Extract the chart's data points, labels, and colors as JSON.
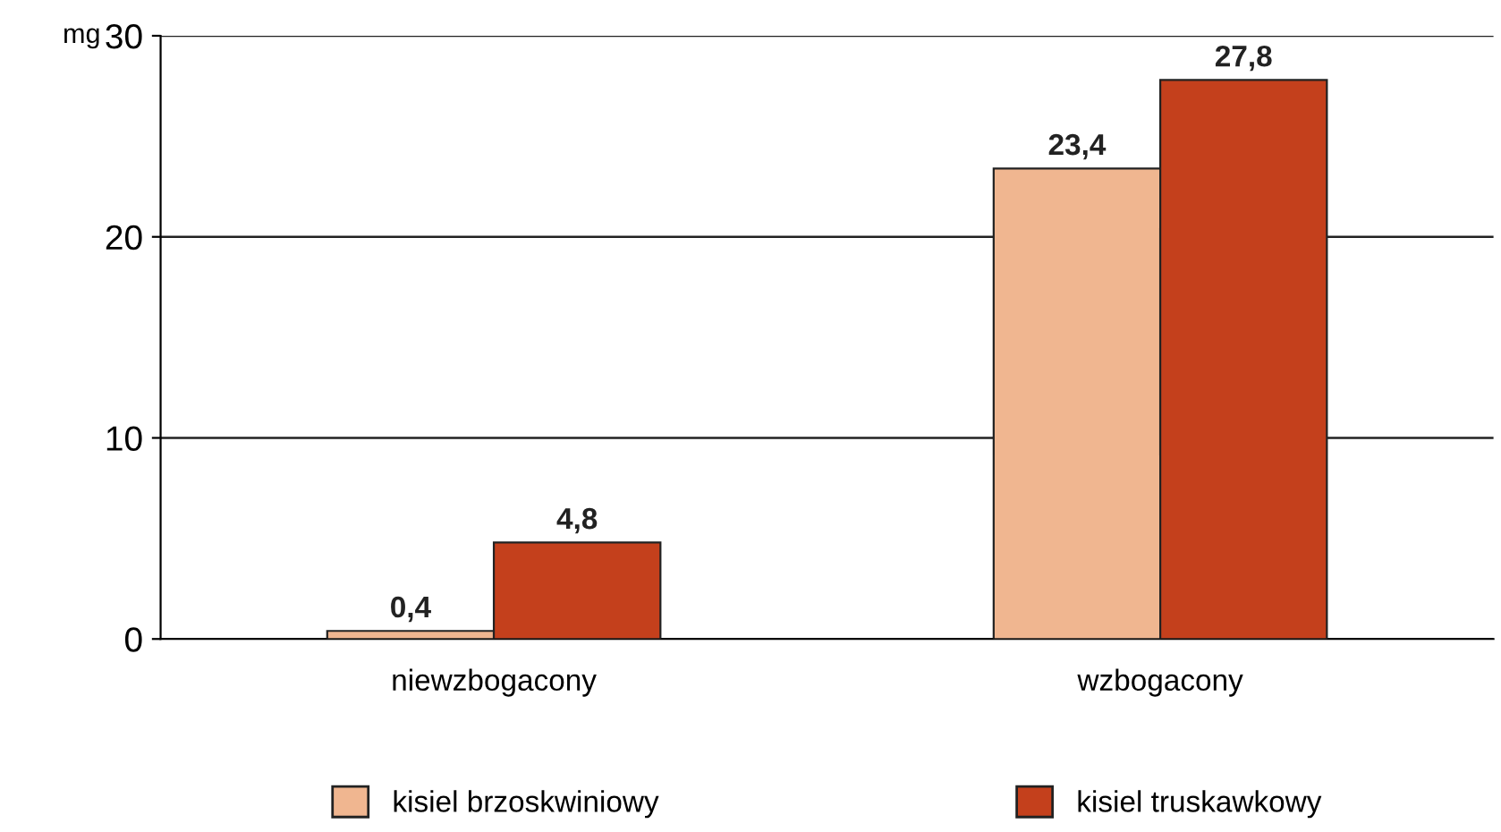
{
  "chart_data": {
    "type": "bar",
    "ylabel": "mg",
    "categories": [
      "niewzbogacony",
      "wzbogacony"
    ],
    "series": [
      {
        "name": "kisiel brzoskwiniowy",
        "color": "#f0b690",
        "values": [
          0.4,
          23.4
        ],
        "value_labels": [
          "0,4",
          "23,4"
        ]
      },
      {
        "name": "kisiel truskawkowy",
        "color": "#c4401c",
        "values": [
          4.8,
          27.8
        ],
        "value_labels": [
          "4,8",
          "27,8"
        ]
      }
    ],
    "ylim": [
      0,
      30
    ],
    "yticks": [
      0,
      10,
      20,
      30
    ],
    "grid": "y",
    "legend": "bottom"
  }
}
